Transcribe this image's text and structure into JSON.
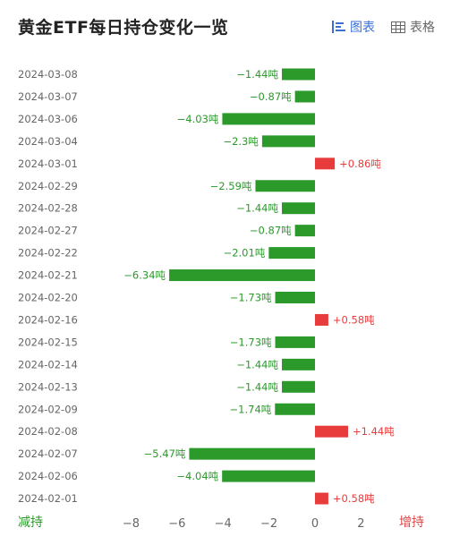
{
  "title": "黄金ETF每日持仓变化一览",
  "tabs": [
    {
      "label": "图表",
      "icon": "bar-chart-icon",
      "active": true
    },
    {
      "label": "表格",
      "icon": "table-icon",
      "active": false
    }
  ],
  "footer": {
    "left_label": "减持",
    "right_label": "增持"
  },
  "colors": {
    "decrease": "#2b9a2b",
    "increase": "#e83c3c",
    "axis_text": "#666666",
    "gridline": "#dddddd"
  },
  "chart_data": {
    "type": "bar",
    "orientation": "horizontal",
    "categories": [
      "2024-03-08",
      "2024-03-07",
      "2024-03-06",
      "2024-03-04",
      "2024-03-01",
      "2024-02-29",
      "2024-02-28",
      "2024-02-27",
      "2024-02-22",
      "2024-02-21",
      "2024-02-20",
      "2024-02-16",
      "2024-02-15",
      "2024-02-14",
      "2024-02-13",
      "2024-02-09",
      "2024-02-08",
      "2024-02-07",
      "2024-02-06",
      "2024-02-01"
    ],
    "values": [
      -1.44,
      -0.87,
      -4.03,
      -2.3,
      0.86,
      -2.59,
      -1.44,
      -0.87,
      -2.01,
      -6.34,
      -1.73,
      0.58,
      -1.73,
      -1.44,
      -1.44,
      -1.74,
      1.44,
      -5.47,
      -4.04,
      0.58
    ],
    "labels": [
      "−1.44吨",
      "−0.87吨",
      "−4.03吨",
      "−2.3吨",
      "+0.86吨",
      "−2.59吨",
      "−1.44吨",
      "−0.87吨",
      "−2.01吨",
      "−6.34吨",
      "−1.73吨",
      "+0.58吨",
      "−1.73吨",
      "−1.44吨",
      "−1.44吨",
      "−1.74吨",
      "+1.44吨",
      "−5.47吨",
      "−4.04吨",
      "+0.58吨"
    ],
    "xticks": [
      -8,
      -6,
      -4,
      -2,
      0,
      2
    ],
    "xtick_labels": [
      "−8",
      "−6",
      "−4",
      "−2",
      "0",
      "2"
    ],
    "xlim": [
      -8.7,
      3.7
    ],
    "grid": false
  }
}
